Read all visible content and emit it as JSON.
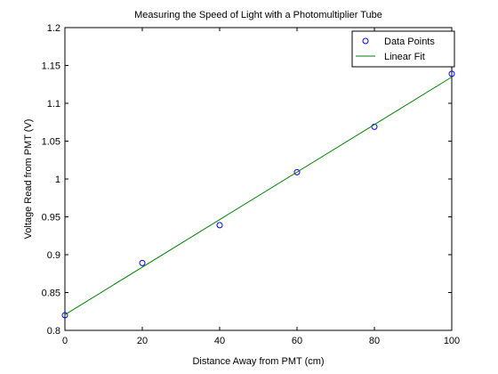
{
  "chart_data": {
    "type": "scatter",
    "title": "Measuring the Speed of Light with a Photomultiplier Tube",
    "xlabel": "Distance Away from PMT (cm)",
    "ylabel": "Voltage Read from PMT (V)",
    "xlim": [
      0,
      100
    ],
    "ylim": [
      0.8,
      1.2
    ],
    "xticks": [
      0,
      20,
      40,
      60,
      80,
      100
    ],
    "xtick_labels": [
      "0",
      "20",
      "40",
      "60",
      "80",
      "100"
    ],
    "yticks": [
      0.8,
      0.85,
      0.9,
      0.95,
      1.0,
      1.05,
      1.1,
      1.15,
      1.2
    ],
    "ytick_labels": [
      "0.8",
      "0.85",
      "0.9",
      "0.95",
      "1",
      "1.05",
      "1.1",
      "1.15",
      "1.2"
    ],
    "grid": false,
    "legend_position": "top-right",
    "series": [
      {
        "name": "Data Points",
        "kind": "markers",
        "marker": "circle",
        "color": "#0000ff",
        "x": [
          0,
          20,
          40,
          60,
          80,
          100
        ],
        "y": [
          0.82,
          0.889,
          0.939,
          1.009,
          1.069,
          1.139
        ]
      },
      {
        "name": "Linear Fit",
        "kind": "line",
        "color": "#008000",
        "x": [
          0,
          100
        ],
        "y": [
          0.8207,
          1.1347
        ]
      }
    ]
  }
}
